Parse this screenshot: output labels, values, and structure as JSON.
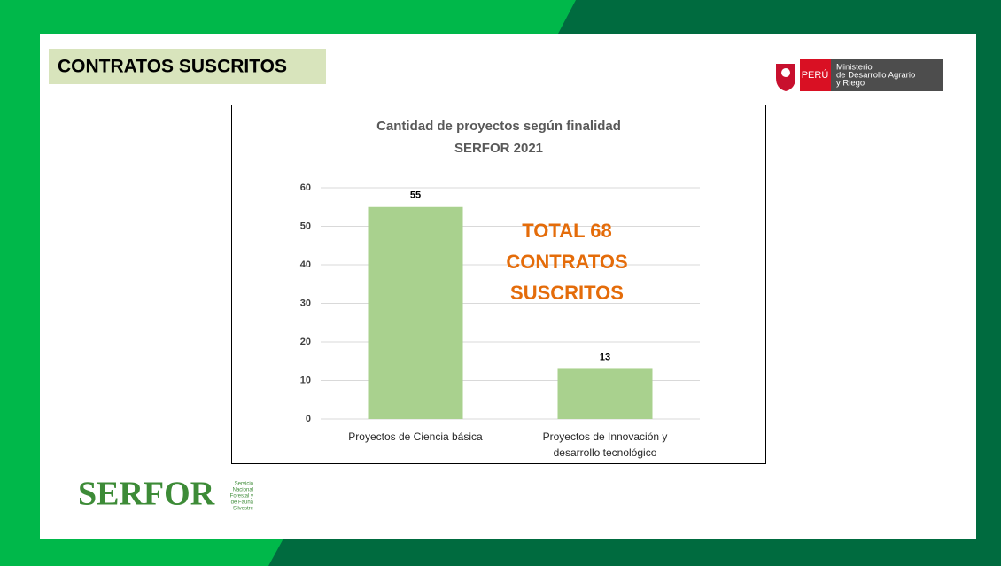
{
  "header": {
    "title": "CONTRATOS SUSCRITOS"
  },
  "gov_logo": {
    "country": "PERÚ",
    "ministry": [
      "Ministerio",
      "de Desarrollo Agrario",
      "y Riego"
    ]
  },
  "serfor_logo": {
    "name": "SERFOR",
    "subtitle": [
      "Servicio",
      "Nacional",
      "Forestal y",
      "de Fauna",
      "Silvestre"
    ]
  },
  "chart_data": {
    "type": "bar",
    "title": [
      "Cantidad de proyectos según finalidad",
      "SERFOR 2021"
    ],
    "categories": [
      "Proyectos de Ciencia básica",
      "Proyectos de Innovación y desarrollo tecnológico"
    ],
    "values": [
      55,
      13
    ],
    "color": "#a9d18e",
    "ylim": [
      0,
      60
    ],
    "yticks": [
      0,
      10,
      20,
      30,
      40,
      50,
      60
    ],
    "grid": true,
    "annotation": [
      "TOTAL 68",
      "CONTRATOS",
      "SUSCRITOS"
    ]
  }
}
